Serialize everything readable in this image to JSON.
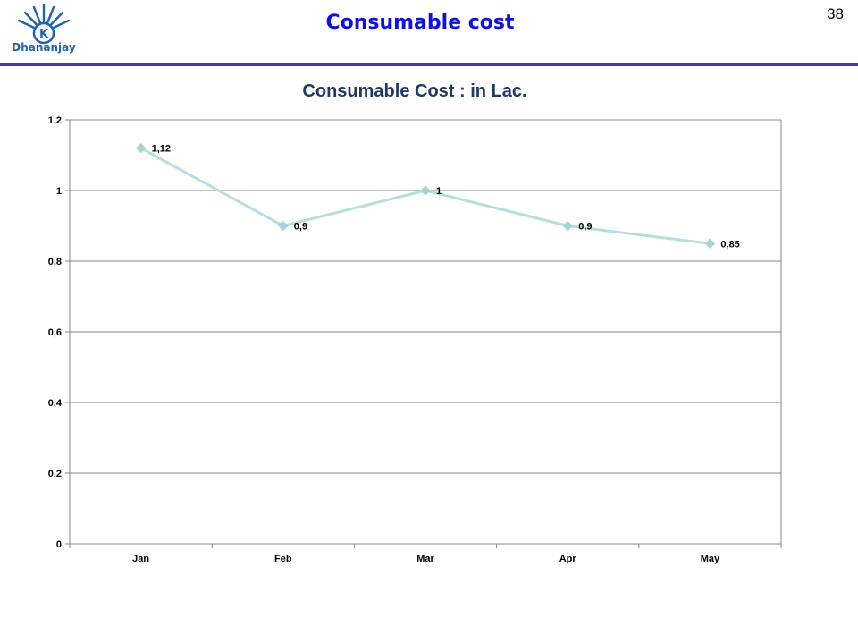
{
  "header": {
    "title": "Consumable cost",
    "page_number": "38",
    "logo_text": "Dhananjay",
    "logo_letter": "K"
  },
  "colors": {
    "title": "#1010e0",
    "rule": "#3d3d9a",
    "line": "#b7dde1",
    "marker": "#a4d4d8",
    "grid": "#868686"
  },
  "chart_data": {
    "type": "line",
    "title": "Consumable Cost : in Lac.",
    "categories": [
      "Jan",
      "Feb",
      "Mar",
      "Apr",
      "May"
    ],
    "series": [
      {
        "values": [
          1.12,
          0.9,
          1,
          0.9,
          0.85
        ],
        "labels": [
          "1,12",
          "0,9",
          "1",
          "0,9",
          "0,85"
        ]
      }
    ],
    "ylim": [
      0,
      1.2
    ],
    "yticks": [
      0,
      0.2,
      0.4,
      0.6,
      0.8,
      1,
      1.2
    ],
    "ytick_labels": [
      "0",
      "0,2",
      "0,4",
      "0,6",
      "0,8",
      "1",
      "1,2"
    ],
    "grid": true,
    "legend": "none",
    "marker": "diamond"
  }
}
